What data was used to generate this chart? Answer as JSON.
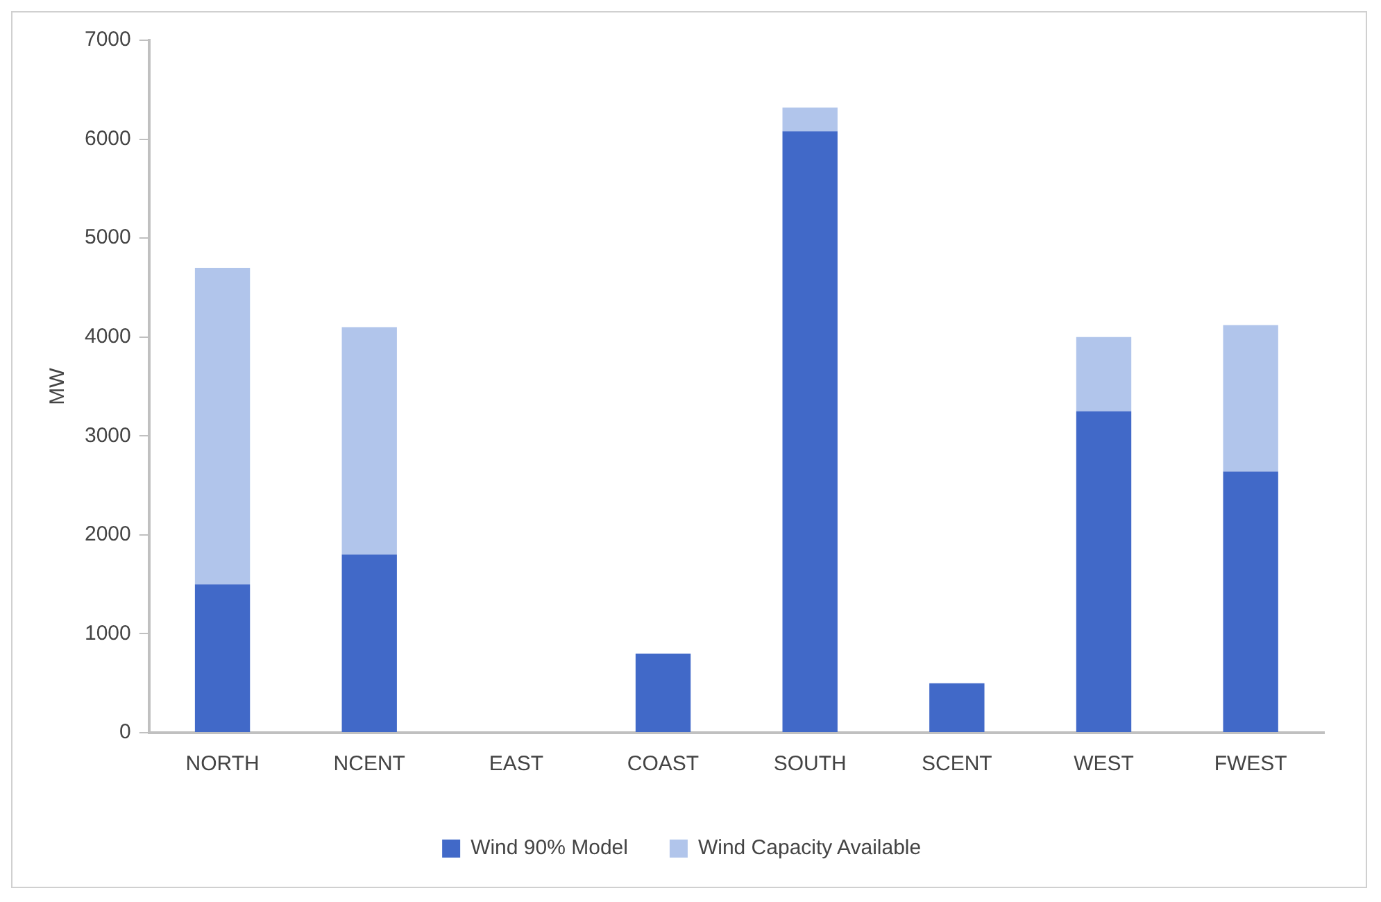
{
  "chart_data": {
    "type": "bar",
    "stacked": true,
    "ylabel": "MW",
    "categories": [
      "NORTH",
      "NCENT",
      "EAST",
      "COAST",
      "SOUTH",
      "SCENT",
      "WEST",
      "FWEST"
    ],
    "series": [
      {
        "name": "Wind 90% Model",
        "color": "#4169c8",
        "values": [
          1500,
          1800,
          0,
          800,
          6080,
          500,
          3250,
          2640
        ]
      },
      {
        "name": "Wind Capacity Available",
        "color": "#b1c5eb",
        "values": [
          3200,
          2300,
          0,
          0,
          240,
          0,
          750,
          1480
        ]
      }
    ],
    "ylim": [
      0,
      7000
    ],
    "yticks": [
      0,
      1000,
      2000,
      3000,
      4000,
      5000,
      6000,
      7000
    ],
    "grid": false,
    "legend": "bottom"
  }
}
